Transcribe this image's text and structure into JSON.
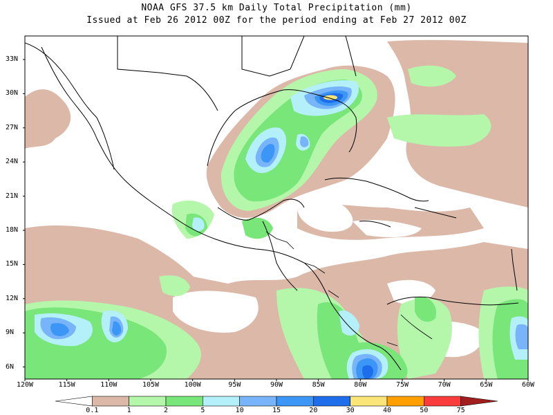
{
  "title": {
    "line1": "NOAA GFS 37.5 km Daily Total Precipitation (mm)",
    "line2": "Issued at Feb 26 2012 00Z for the period ending at Feb 27 2012 00Z"
  },
  "lat_labels": [
    "33N",
    "30N",
    "27N",
    "24N",
    "21N",
    "18N",
    "15N",
    "12N",
    "9N",
    "6N"
  ],
  "lon_labels": [
    "120W",
    "115W",
    "110W",
    "105W",
    "100W",
    "95W",
    "90W",
    "85W",
    "80W",
    "75W",
    "70W",
    "65W",
    "60W"
  ],
  "colorbar": {
    "labels": [
      "0.1",
      "1",
      "2",
      "5",
      "10",
      "15",
      "20",
      "30",
      "40",
      "50",
      "75"
    ],
    "colors": [
      "#ffffff",
      "#dcb8a8",
      "#b4f6aa",
      "#78e678",
      "#b4f0fa",
      "#78b4fa",
      "#3c96f5",
      "#1e6eeb",
      "#fae678",
      "#ffa000",
      "#fa3c3c",
      "#a01e1e"
    ]
  },
  "colors": {
    "light_brown": "#dcb8a8",
    "light_green": "#b4f6aa",
    "green": "#78e678",
    "cyan": "#b4f0fa",
    "light_blue": "#78b4fa",
    "blue": "#3c96f5",
    "dark_blue": "#1e6eeb",
    "yellow": "#fae678"
  }
}
